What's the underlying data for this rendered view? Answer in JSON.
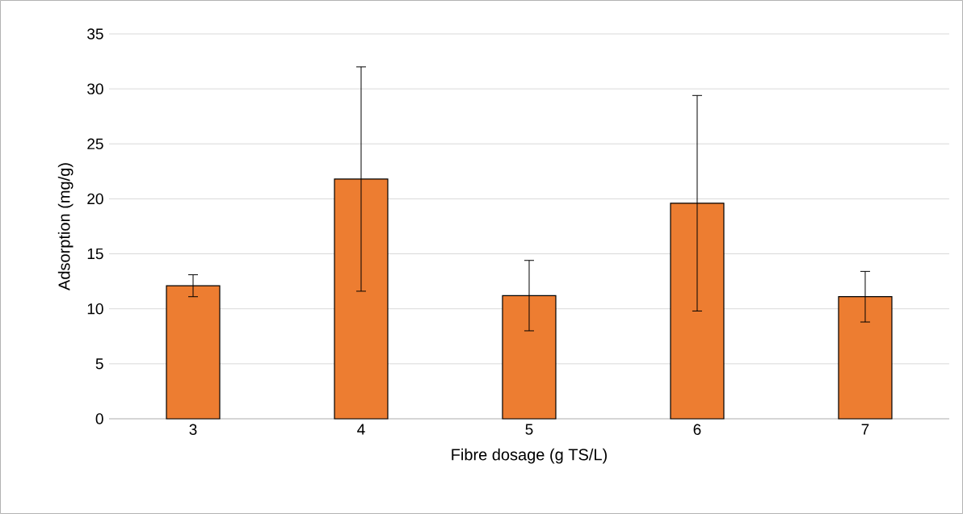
{
  "chart_data": {
    "type": "bar",
    "xlabel": "Fibre dosage (g TS/L)",
    "ylabel": "Adsorption (mg/g)",
    "categories": [
      "3",
      "4",
      "5",
      "6",
      "7"
    ],
    "values": [
      12.1,
      21.8,
      11.2,
      19.6,
      11.1
    ],
    "errors": [
      1.0,
      10.2,
      3.2,
      9.8,
      2.3
    ],
    "color": "#ed7d31",
    "ylim": [
      0,
      35
    ],
    "yticks": [
      0,
      5,
      10,
      15,
      20,
      25,
      30,
      35
    ],
    "grid": "y"
  }
}
